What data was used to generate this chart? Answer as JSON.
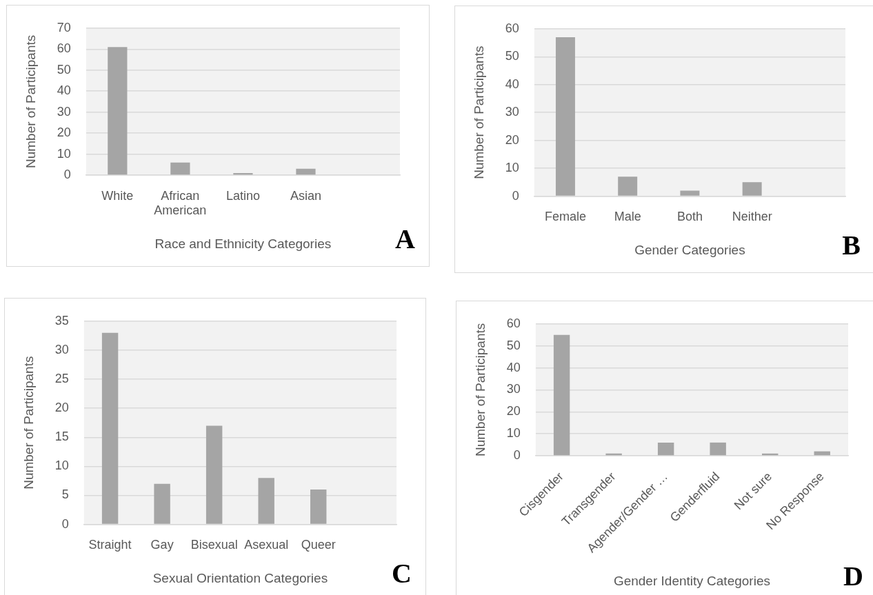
{
  "chart_data": [
    {
      "type": "bar",
      "categories": [
        "White",
        "African American",
        "Latino",
        "Asian",
        null
      ],
      "values": [
        61,
        6,
        1,
        3,
        null
      ],
      "color": "#a5a5a5",
      "xlabel": "Race and Ethnicity Categories",
      "ylabel": "Number of Participants",
      "ylim": [
        0,
        70
      ],
      "yticks": [
        0,
        10,
        20,
        30,
        40,
        50,
        60,
        70
      ],
      "grid": "y",
      "legend": false,
      "annotations": [
        "A"
      ]
    },
    {
      "type": "bar",
      "categories": [
        "Female",
        "Male",
        "Both",
        "Neither",
        null
      ],
      "values": [
        57,
        7,
        2,
        5,
        null
      ],
      "color": "#a5a5a5",
      "xlabel": "Gender Categories",
      "ylabel": "Number of Participants",
      "ylim": [
        0,
        60
      ],
      "yticks": [
        0,
        10,
        20,
        30,
        40,
        50,
        60
      ],
      "grid": "y",
      "legend": false,
      "annotations": [
        "B"
      ]
    },
    {
      "type": "bar",
      "categories": [
        "Straight",
        "Gay",
        "Bisexual",
        "Asexual",
        "Queer",
        null
      ],
      "values": [
        33,
        7,
        17,
        8,
        6,
        null
      ],
      "color": "#a5a5a5",
      "xlabel": "Sexual Orientation Categories",
      "ylabel": "Number of Participants",
      "ylim": [
        0,
        35
      ],
      "yticks": [
        0,
        5,
        10,
        15,
        20,
        25,
        30,
        35
      ],
      "grid": "y",
      "legend": false,
      "annotations": [
        "C"
      ]
    },
    {
      "type": "bar",
      "categories": [
        "Cisgender",
        "Transgender",
        "Agender/Gender …",
        "Genderfluid",
        "Not sure",
        "No Response"
      ],
      "values": [
        55,
        1,
        6,
        6,
        1,
        2
      ],
      "color": "#a5a5a5",
      "xlabel": "Gender Identity Categories",
      "ylabel": "Number of Participants",
      "ylim": [
        0,
        60
      ],
      "yticks": [
        0,
        10,
        20,
        30,
        40,
        50,
        60
      ],
      "grid": "y",
      "legend": false,
      "annotations": [
        "D"
      ]
    }
  ]
}
